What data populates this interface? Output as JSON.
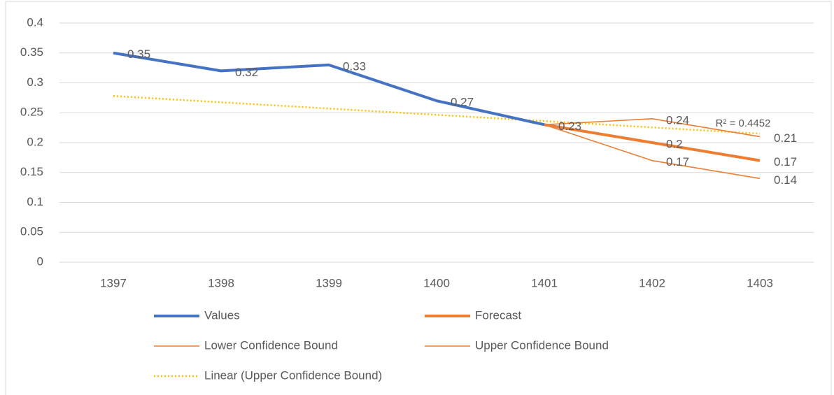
{
  "chart_data": {
    "type": "line",
    "categories": [
      "1397",
      "1398",
      "1399",
      "1400",
      "1401",
      "1402",
      "1403"
    ],
    "series": [
      {
        "name": "Values",
        "color": "#4472c4",
        "width": 4,
        "values": [
          0.35,
          0.32,
          0.33,
          0.27,
          0.23,
          null,
          null
        ],
        "label_points": [
          0,
          1,
          2,
          3,
          4
        ]
      },
      {
        "name": "Forecast",
        "color": "#ed7d31",
        "width": 4,
        "values": [
          null,
          null,
          null,
          null,
          0.23,
          0.2,
          0.17
        ],
        "label_points": [
          5,
          6
        ]
      },
      {
        "name": "Lower Confidence Bound",
        "color": "#ed7d31",
        "width": 1.6,
        "values": [
          null,
          null,
          null,
          null,
          0.23,
          0.17,
          0.14
        ],
        "label_points": [
          5,
          6
        ]
      },
      {
        "name": "Upper Confidence Bound",
        "color": "#ed7d31",
        "width": 1.6,
        "values": [
          null,
          null,
          null,
          null,
          0.23,
          0.24,
          0.21
        ],
        "label_points": [
          5,
          6
        ]
      }
    ],
    "trendline": {
      "name": "Linear (Upper Confidence Bound)",
      "color": "#ffc000",
      "start": 0.278,
      "end": 0.215,
      "r2": "R² = 0.4452"
    },
    "ylim": [
      0,
      0.4
    ],
    "yticks": [
      0,
      0.05,
      0.1,
      0.15,
      0.2,
      0.25,
      0.3,
      0.35,
      0.4
    ],
    "grid": true
  }
}
